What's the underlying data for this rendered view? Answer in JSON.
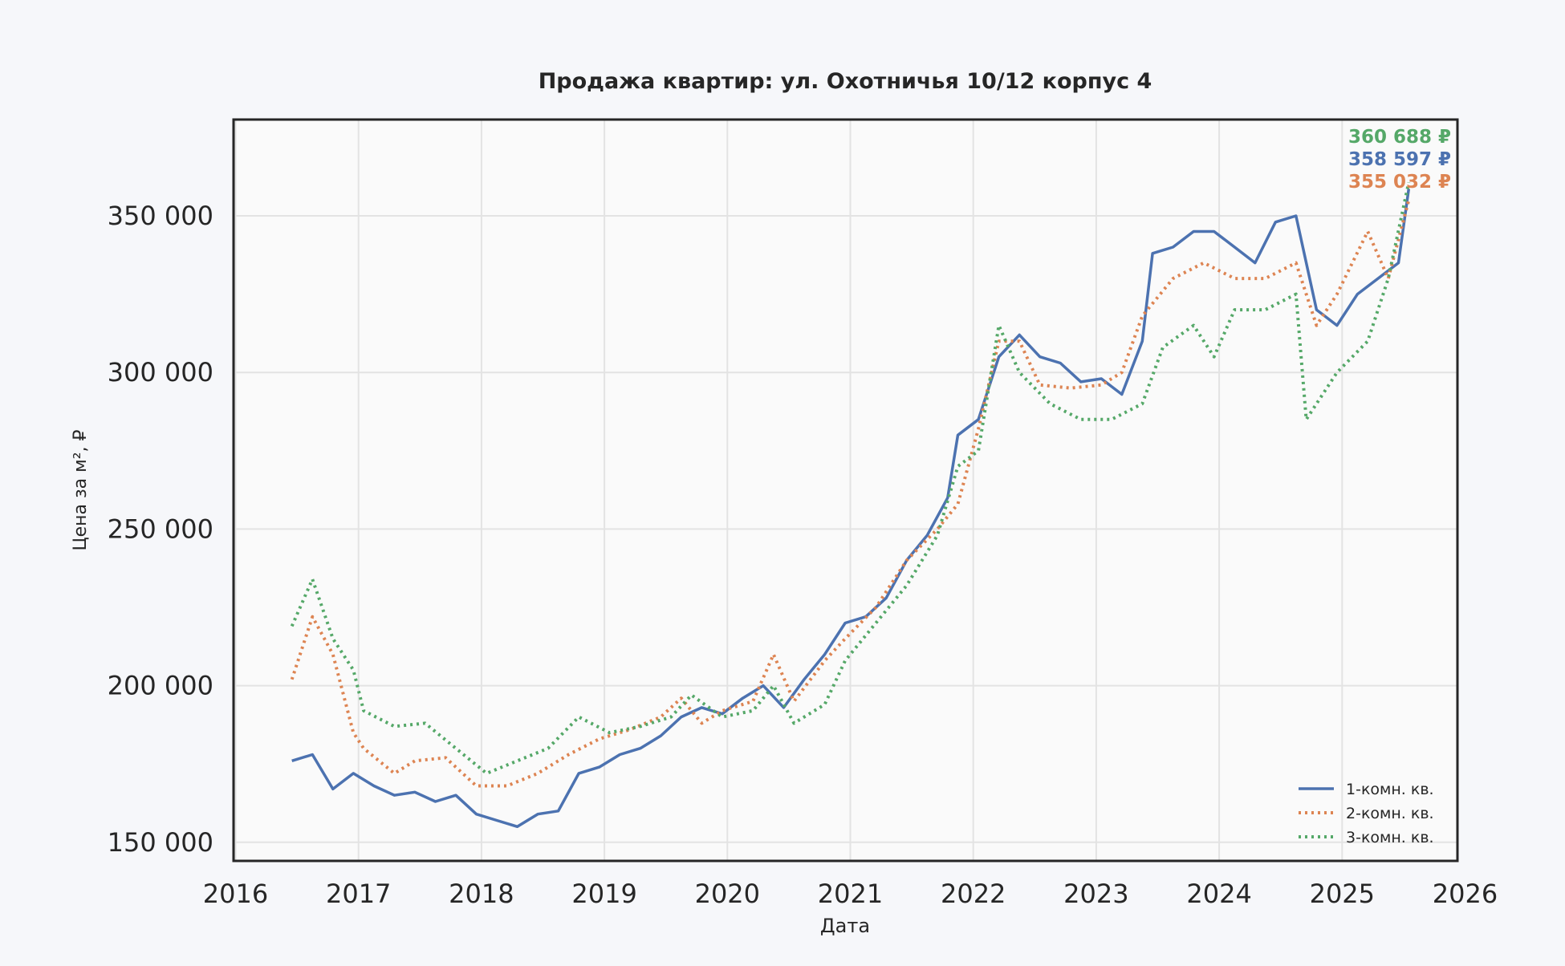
{
  "chart_data": {
    "type": "line",
    "title": "Продажа квартир: ул. Охотничья 10/12 корпус 4",
    "xlabel": "Дата",
    "ylabel": "Цена за м², ₽",
    "xlim": [
      2016,
      2026
    ],
    "ylim": [
      143000,
      380000
    ],
    "x_ticks": [
      "2016",
      "2017",
      "2018",
      "2019",
      "2020",
      "2021",
      "2022",
      "2023",
      "2024",
      "2025",
      "2026"
    ],
    "y_ticks": [
      150000,
      200000,
      250000,
      300000,
      350000
    ],
    "y_tick_labels": [
      "150 000",
      "200 000",
      "250 000",
      "300 000",
      "350 000"
    ],
    "grid": true,
    "legend_position": "bottom-right",
    "series": [
      {
        "name": "1-комн. кв.",
        "color": "#4c72b0",
        "style": "solid",
        "end_label": "358 597 ₽",
        "points": [
          [
            "2016-06",
            176000
          ],
          [
            "2016-08",
            178000
          ],
          [
            "2016-10",
            167000
          ],
          [
            "2016-12",
            172000
          ],
          [
            "2017-02",
            168000
          ],
          [
            "2017-04",
            165000
          ],
          [
            "2017-06",
            166000
          ],
          [
            "2017-08",
            163000
          ],
          [
            "2017-10",
            165000
          ],
          [
            "2017-12",
            159000
          ],
          [
            "2018-02",
            157000
          ],
          [
            "2018-04",
            155000
          ],
          [
            "2018-06",
            159000
          ],
          [
            "2018-08",
            160000
          ],
          [
            "2018-10",
            172000
          ],
          [
            "2018-12",
            174000
          ],
          [
            "2019-02",
            178000
          ],
          [
            "2019-04",
            180000
          ],
          [
            "2019-06",
            184000
          ],
          [
            "2019-08",
            190000
          ],
          [
            "2019-10",
            193000
          ],
          [
            "2019-12",
            191000
          ],
          [
            "2020-02",
            196000
          ],
          [
            "2020-04",
            200000
          ],
          [
            "2020-06",
            193000
          ],
          [
            "2020-08",
            202000
          ],
          [
            "2020-10",
            210000
          ],
          [
            "2020-12",
            220000
          ],
          [
            "2021-02",
            222000
          ],
          [
            "2021-04",
            228000
          ],
          [
            "2021-06",
            240000
          ],
          [
            "2021-08",
            248000
          ],
          [
            "2021-10",
            260000
          ],
          [
            "2021-11",
            280000
          ],
          [
            "2022-01",
            285000
          ],
          [
            "2022-03",
            305000
          ],
          [
            "2022-05",
            312000
          ],
          [
            "2022-07",
            305000
          ],
          [
            "2022-09",
            303000
          ],
          [
            "2022-11",
            297000
          ],
          [
            "2023-01",
            298000
          ],
          [
            "2023-03",
            293000
          ],
          [
            "2023-05",
            310000
          ],
          [
            "2023-06",
            338000
          ],
          [
            "2023-08",
            340000
          ],
          [
            "2023-10",
            345000
          ],
          [
            "2023-12",
            345000
          ],
          [
            "2024-02",
            340000
          ],
          [
            "2024-04",
            335000
          ],
          [
            "2024-06",
            348000
          ],
          [
            "2024-08",
            350000
          ],
          [
            "2024-10",
            320000
          ],
          [
            "2024-12",
            315000
          ],
          [
            "2025-02",
            325000
          ],
          [
            "2025-04",
            330000
          ],
          [
            "2025-06",
            335000
          ],
          [
            "2025-07",
            358597
          ]
        ]
      },
      {
        "name": "2-комн. кв.",
        "color": "#dd8452",
        "style": "dotted",
        "end_label": "355 032 ₽",
        "points": [
          [
            "2016-06",
            202000
          ],
          [
            "2016-08",
            222000
          ],
          [
            "2016-10",
            210000
          ],
          [
            "2016-12",
            185000
          ],
          [
            "2017-01",
            180000
          ],
          [
            "2017-04",
            172000
          ],
          [
            "2017-06",
            176000
          ],
          [
            "2017-09",
            177000
          ],
          [
            "2017-12",
            168000
          ],
          [
            "2018-03",
            168000
          ],
          [
            "2018-06",
            172000
          ],
          [
            "2018-09",
            178000
          ],
          [
            "2018-12",
            183000
          ],
          [
            "2019-03",
            186000
          ],
          [
            "2019-06",
            190000
          ],
          [
            "2019-08",
            196000
          ],
          [
            "2019-10",
            188000
          ],
          [
            "2019-12",
            192000
          ],
          [
            "2020-03",
            195000
          ],
          [
            "2020-05",
            210000
          ],
          [
            "2020-07",
            195000
          ],
          [
            "2020-10",
            208000
          ],
          [
            "2020-12",
            215000
          ],
          [
            "2021-03",
            225000
          ],
          [
            "2021-06",
            240000
          ],
          [
            "2021-09",
            250000
          ],
          [
            "2021-11",
            258000
          ],
          [
            "2022-01",
            282000
          ],
          [
            "2022-03",
            310000
          ],
          [
            "2022-05",
            310000
          ],
          [
            "2022-07",
            296000
          ],
          [
            "2022-10",
            295000
          ],
          [
            "2023-01",
            296000
          ],
          [
            "2023-03",
            300000
          ],
          [
            "2023-05",
            318000
          ],
          [
            "2023-08",
            330000
          ],
          [
            "2023-11",
            335000
          ],
          [
            "2024-02",
            330000
          ],
          [
            "2024-05",
            330000
          ],
          [
            "2024-08",
            335000
          ],
          [
            "2024-10",
            315000
          ],
          [
            "2024-12",
            325000
          ],
          [
            "2025-03",
            345000
          ],
          [
            "2025-05",
            330000
          ],
          [
            "2025-07",
            355032
          ]
        ]
      },
      {
        "name": "3-комн. кв.",
        "color": "#55a868",
        "style": "dotted",
        "end_label": "360 688 ₽",
        "points": [
          [
            "2016-06",
            219000
          ],
          [
            "2016-08",
            234000
          ],
          [
            "2016-10",
            215000
          ],
          [
            "2016-12",
            205000
          ],
          [
            "2017-01",
            192000
          ],
          [
            "2017-04",
            187000
          ],
          [
            "2017-07",
            188000
          ],
          [
            "2017-10",
            180000
          ],
          [
            "2018-01",
            172000
          ],
          [
            "2018-04",
            176000
          ],
          [
            "2018-07",
            180000
          ],
          [
            "2018-10",
            190000
          ],
          [
            "2019-01",
            185000
          ],
          [
            "2019-04",
            187000
          ],
          [
            "2019-07",
            190000
          ],
          [
            "2019-09",
            197000
          ],
          [
            "2019-12",
            190000
          ],
          [
            "2020-03",
            192000
          ],
          [
            "2020-05",
            200000
          ],
          [
            "2020-07",
            188000
          ],
          [
            "2020-10",
            194000
          ],
          [
            "2020-12",
            208000
          ],
          [
            "2021-03",
            220000
          ],
          [
            "2021-06",
            232000
          ],
          [
            "2021-09",
            248000
          ],
          [
            "2021-11",
            270000
          ],
          [
            "2022-01",
            275000
          ],
          [
            "2022-03",
            315000
          ],
          [
            "2022-05",
            300000
          ],
          [
            "2022-08",
            290000
          ],
          [
            "2022-11",
            285000
          ],
          [
            "2023-02",
            285000
          ],
          [
            "2023-05",
            290000
          ],
          [
            "2023-07",
            308000
          ],
          [
            "2023-10",
            315000
          ],
          [
            "2023-12",
            305000
          ],
          [
            "2024-02",
            320000
          ],
          [
            "2024-05",
            320000
          ],
          [
            "2024-08",
            325000
          ],
          [
            "2024-09",
            285000
          ],
          [
            "2024-12",
            300000
          ],
          [
            "2025-03",
            310000
          ],
          [
            "2025-05",
            330000
          ],
          [
            "2025-07",
            360688
          ]
        ]
      }
    ]
  }
}
